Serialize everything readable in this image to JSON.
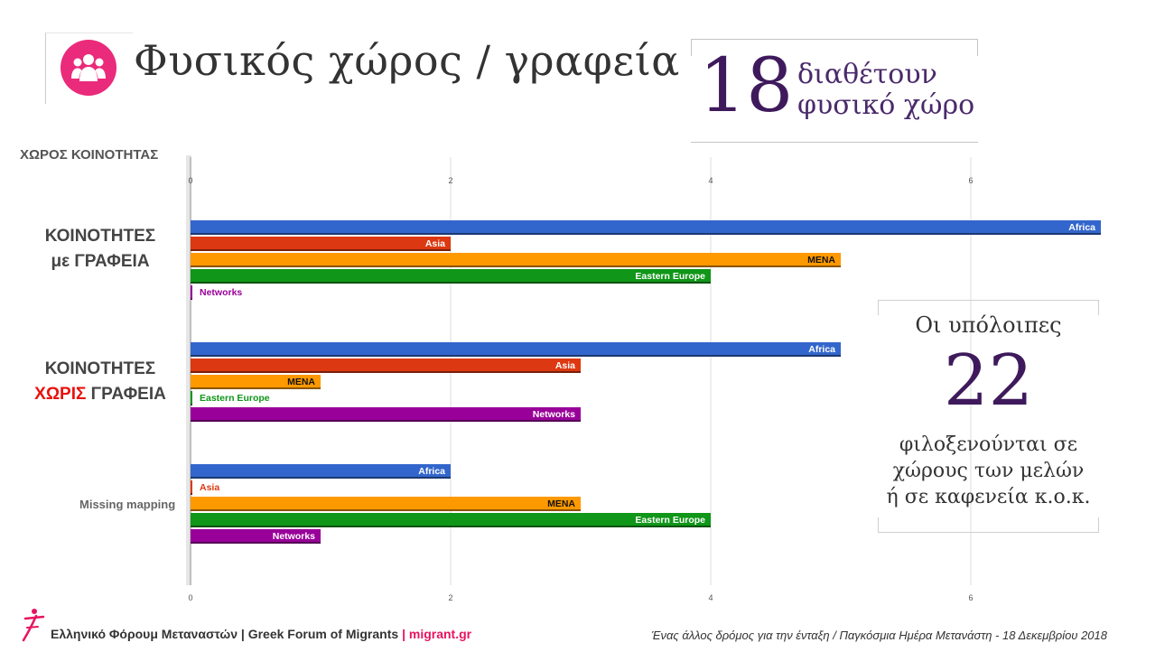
{
  "header": {
    "title": "Φυσικός χώρος / γραφεία",
    "icon": "people-group-icon",
    "icon_color": "#ea2a7a"
  },
  "stat_box": {
    "number": "18",
    "line1": "διαθέτουν",
    "line2": "φυσικό χώρο"
  },
  "side_box": {
    "line1": "Οι υπόλοιπες",
    "number": "22",
    "line2": "φιλοξενούνται σε",
    "line3": "χώρους των μελών",
    "line4": "ή σε καφενεία κ.ο.κ."
  },
  "chart_heading": "ΧΩΡΟΣ ΚΟΙΝΟΤΗΤΑΣ",
  "group_labels": {
    "g1_line1": "ΚΟΙΝΟΤΗΤΕΣ",
    "g1_line2": "με ΓΡΑΦΕΙΑ",
    "g2_line1": "ΚΟΙΝΟΤΗΤΕΣ",
    "g2_red": "ΧΩΡΙΣ",
    "g2_rest": " ΓΡΑΦΕΙΑ",
    "g3": "Missing mapping"
  },
  "chart_data": {
    "type": "bar",
    "orientation": "horizontal",
    "title": "ΧΩΡΟΣ ΚΟΙΝΟΤΗΤΑΣ",
    "categories": [
      "ΚΟΙΝΟΤΗΤΕΣ με ΓΡΑΦΕΙΑ",
      "ΚΟΙΝΟΤΗΤΕΣ ΧΩΡΙΣ ΓΡΑΦΕΙΑ",
      "Missing mapping"
    ],
    "series": [
      {
        "name": "Africa",
        "color": "#3366cc",
        "values": [
          7,
          5,
          2
        ]
      },
      {
        "name": "Asia",
        "color": "#dc3912",
        "values": [
          2,
          3,
          0
        ]
      },
      {
        "name": "MENA",
        "color": "#ff9900",
        "values": [
          5,
          1,
          3
        ]
      },
      {
        "name": "Eastern Europe",
        "color": "#109618",
        "values": [
          4,
          0,
          4
        ]
      },
      {
        "name": "Networks",
        "color": "#990099",
        "values": [
          0,
          3,
          1
        ]
      }
    ],
    "xlim": [
      0,
      7
    ],
    "xticks": [
      0,
      2,
      4,
      6
    ],
    "grid": true,
    "legend": "none (labels on bars)"
  },
  "footer": {
    "org": "Ελληνικό Φόρουμ Μεταναστών | Greek Forum of Migrants",
    "separator": "|",
    "site": "migrant.gr",
    "right_text": "Ένας άλλος δρόμος για την ένταξη / Παγκόσμια Ημέρα Μετανάστη - 18 Δεκεμβρίου 2018",
    "logo_icon": "migrant-figure-logo-icon"
  }
}
